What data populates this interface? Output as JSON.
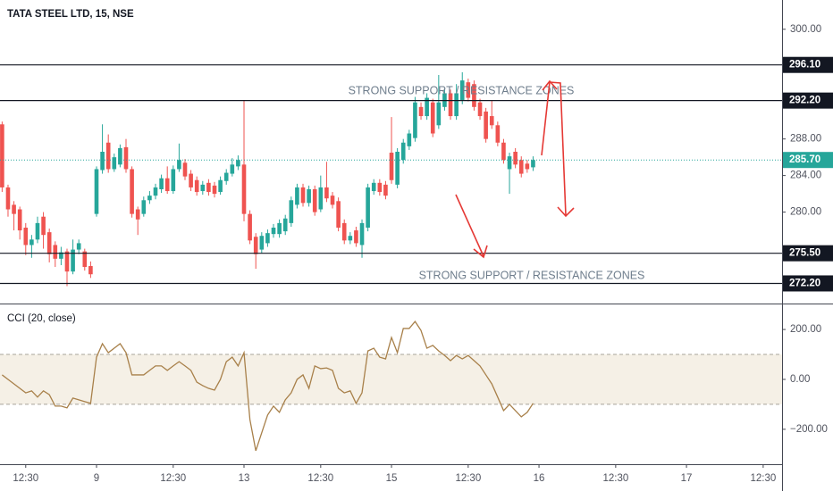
{
  "chart_data": [
    {
      "type": "candlestick",
      "title": "TATA STEEL LTD, 15, NSE",
      "open": [
        289.6,
        282.7,
        280.8,
        280.3,
        278.3,
        276.4,
        277.0,
        279.5,
        277.8,
        276.4,
        274.9,
        275.7,
        273.5,
        275.9,
        275.7,
        274.1,
        279.8,
        284.6,
        287.6,
        284.7,
        285.2,
        287.1,
        284.7,
        280.3,
        279.8,
        281.3,
        281.8,
        282.5,
        283.7,
        282.3,
        284.7,
        285.4,
        284.2,
        283.5,
        282.3,
        283.2,
        282.9,
        282.2,
        283.4,
        284.2,
        285.0,
        285.2,
        279.8,
        277.3,
        275.9,
        276.6,
        277.6,
        277.6,
        277.9,
        278.8,
        280.8,
        282.7,
        281.0,
        282.5,
        280.3,
        282.7,
        281.8,
        281.2,
        278.8,
        276.9,
        278.0,
        276.4,
        278.3,
        282.3,
        283.2,
        283.0,
        286.5,
        283.0,
        285.7,
        287.2,
        288.1,
        291.5,
        290.5,
        292.0,
        289.5,
        291.5,
        293.0,
        290.5,
        292.2,
        294.2,
        294.0,
        292.0,
        291.0,
        290.5,
        289.5,
        287.6,
        284.7,
        286.6,
        285.7,
        285.3,
        284.9
      ],
      "high": [
        289.9,
        283.0,
        281.2,
        280.6,
        278.8,
        277.5,
        279.5,
        280.0,
        278.2,
        276.8,
        276.2,
        276.0,
        277.0,
        277.0,
        276.0,
        274.6,
        285.0,
        289.6,
        288.5,
        286.4,
        287.4,
        288.0,
        285.0,
        280.6,
        281.7,
        282.3,
        283.1,
        284.1,
        285.0,
        285.1,
        287.5,
        285.8,
        284.6,
        283.9,
        283.4,
        283.6,
        283.3,
        283.9,
        284.7,
        285.9,
        286.2,
        292.2,
        280.2,
        277.7,
        277.8,
        278.1,
        278.7,
        279.2,
        279.7,
        281.7,
        283.1,
        283.1,
        282.9,
        282.9,
        284.0,
        285.5,
        282.2,
        281.6,
        279.2,
        277.8,
        278.4,
        279.2,
        283.1,
        283.6,
        283.6,
        283.4,
        290.4,
        287.0,
        288.0,
        289.0,
        292.6,
        292.0,
        293.0,
        292.4,
        295.0,
        293.5,
        293.4,
        294.0,
        295.3,
        294.6,
        294.4,
        292.4,
        291.4,
        292.2,
        289.9,
        288.0,
        286.5,
        287.0,
        286.1,
        285.7,
        286.1
      ],
      "low": [
        282.2,
        279.5,
        278.0,
        277.0,
        275.3,
        275.0,
        276.6,
        276.0,
        274.5,
        274.0,
        274.2,
        271.9,
        273.2,
        275.4,
        273.6,
        272.8,
        279.5,
        284.2,
        284.3,
        284.4,
        284.9,
        284.3,
        279.4,
        277.5,
        279.5,
        280.9,
        281.4,
        282.1,
        282.0,
        282.0,
        284.4,
        283.5,
        282.3,
        281.8,
        281.9,
        281.8,
        281.6,
        281.9,
        283.0,
        283.9,
        284.6,
        279.0,
        276.5,
        273.8,
        275.5,
        276.2,
        277.2,
        277.2,
        277.5,
        278.4,
        280.4,
        280.6,
        280.6,
        279.6,
        280.0,
        281.1,
        280.4,
        277.9,
        276.5,
        276.5,
        276.2,
        275.0,
        277.9,
        281.9,
        281.8,
        281.4,
        283.1,
        282.6,
        285.3,
        286.8,
        287.7,
        290.1,
        290.1,
        288.2,
        289.1,
        291.1,
        290.1,
        290.1,
        291.8,
        292.1,
        291.1,
        290.1,
        287.6,
        289.1,
        287.2,
        285.3,
        282.0,
        284.8,
        283.8,
        284.3,
        284.5
      ],
      "close": [
        282.7,
        280.3,
        279.8,
        278.0,
        276.4,
        277.0,
        278.8,
        277.5,
        275.4,
        274.9,
        275.6,
        273.5,
        275.9,
        276.6,
        274.0,
        273.2,
        284.7,
        286.6,
        284.7,
        286.0,
        287.0,
        284.7,
        279.8,
        279.2,
        281.3,
        281.8,
        282.7,
        283.7,
        282.3,
        284.7,
        285.7,
        283.9,
        282.7,
        282.2,
        283.0,
        282.2,
        282.0,
        283.5,
        284.3,
        285.2,
        285.7,
        279.8,
        276.9,
        275.4,
        277.4,
        277.7,
        278.3,
        278.8,
        279.3,
        281.3,
        282.7,
        281.0,
        282.5,
        280.0,
        282.7,
        281.5,
        280.8,
        278.3,
        276.9,
        277.4,
        276.6,
        278.8,
        282.7,
        283.2,
        282.2,
        281.8,
        283.5,
        286.6,
        287.6,
        288.6,
        292.0,
        290.5,
        292.5,
        288.6,
        292.0,
        293.0,
        290.5,
        293.0,
        294.4,
        292.5,
        291.5,
        290.5,
        288.0,
        289.5,
        287.6,
        285.7,
        286.1,
        285.2,
        284.2,
        284.7,
        285.7
      ],
      "up_color": "#26a69a",
      "down_color": "#ef5350",
      "xlim": [
        -0.36,
        132.2
      ],
      "ylim": [
        270,
        303.2
      ],
      "yticks": [
        {
          "value": 300,
          "label": "300.00"
        },
        {
          "value": 288,
          "label": "288.00"
        },
        {
          "value": 284,
          "label": "284.00"
        },
        {
          "value": 280,
          "label": "280.00"
        }
      ],
      "hlines": [
        {
          "value": 296.1,
          "label": "296.10"
        },
        {
          "value": 292.2,
          "label": "292.20"
        },
        {
          "value": 275.5,
          "label": "275.50"
        },
        {
          "value": 272.2,
          "label": "272.20"
        }
      ],
      "last_price": {
        "value": 285.7,
        "label": "285.70"
      },
      "annotations": [
        "STRONG SUPPORT / RESISTANCE ZONES",
        "STRONG SUPPORT / RESISTANCE ZONES"
      ]
    },
    {
      "type": "line",
      "title": "CCI (20, close)",
      "values": [
        18,
        0,
        -18,
        -36,
        -54,
        -46,
        -71,
        -46,
        -61,
        -107,
        -107,
        -114,
        -75,
        -82,
        -89,
        -96,
        89,
        143,
        107,
        125,
        143,
        107,
        18,
        18,
        18,
        36,
        54,
        54,
        36,
        54,
        71,
        54,
        36,
        -11,
        -25,
        -36,
        -43,
        0,
        71,
        89,
        54,
        107,
        -161,
        -286,
        -214,
        -143,
        -107,
        -132,
        -82,
        -54,
        0,
        18,
        -36,
        54,
        43,
        46,
        36,
        -36,
        -54,
        -46,
        -96,
        -54,
        114,
        125,
        89,
        82,
        168,
        107,
        204,
        204,
        232,
        196,
        125,
        136,
        114,
        96,
        75,
        96,
        82,
        96,
        75,
        54,
        18,
        -18,
        -71,
        -125,
        -100,
        -125,
        -150,
        -132,
        -96
      ],
      "color": "#a8804a",
      "bands": [
        100,
        -100
      ],
      "xlim": [
        -0.36,
        132.2
      ],
      "ylim": [
        -340,
        304
      ],
      "yticks": [
        {
          "value": 200,
          "label": "200.00"
        },
        {
          "value": 0,
          "label": "0.00"
        },
        {
          "value": -200,
          "label": "−200.00"
        }
      ],
      "xticks": [
        {
          "value": 4,
          "label": "12:30"
        },
        {
          "value": 16,
          "label": "9"
        },
        {
          "value": 29,
          "label": "12:30"
        },
        {
          "value": 41,
          "label": "13"
        },
        {
          "value": 54,
          "label": "12:30"
        },
        {
          "value": 66,
          "label": "15"
        },
        {
          "value": 79,
          "label": "12:30"
        },
        {
          "value": 91,
          "label": "16"
        },
        {
          "value": 104,
          "label": "12:30"
        },
        {
          "value": 116,
          "label": "17"
        },
        {
          "value": 129,
          "label": "12:30"
        }
      ]
    }
  ]
}
